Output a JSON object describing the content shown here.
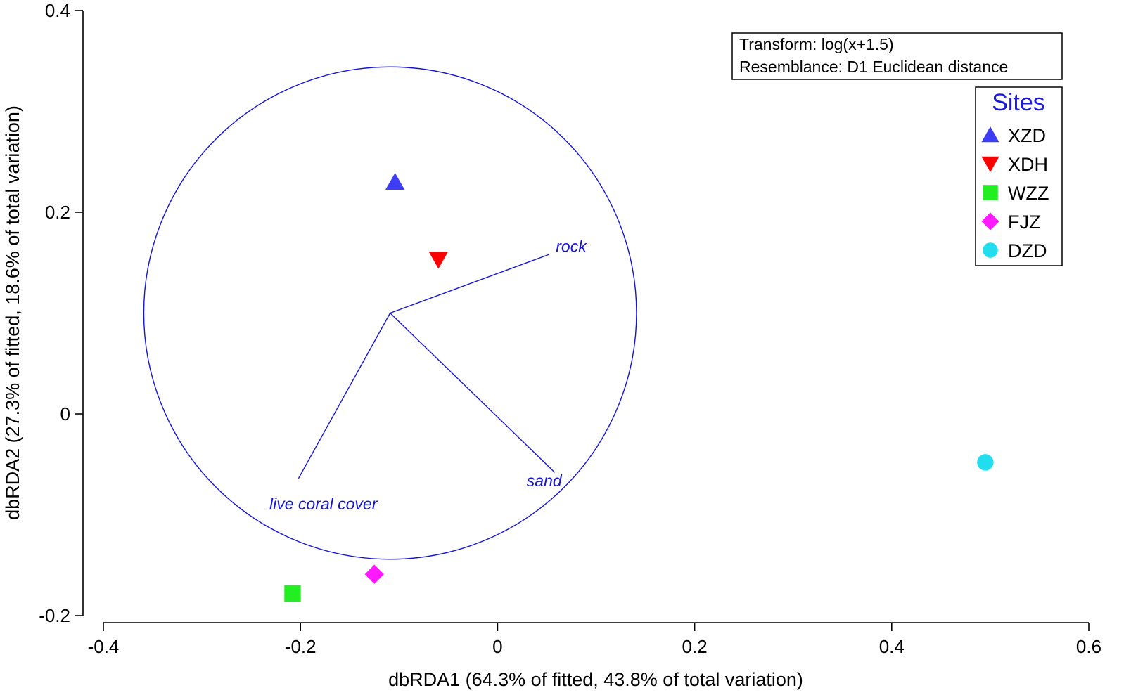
{
  "chart_data": {
    "type": "scatter",
    "title": "",
    "xlabel": "dbRDA1 (64.3% of fitted, 43.8% of total variation)",
    "ylabel": "dbRDA2 (27.3% of fitted, 18.6% of total variation)",
    "xlim": [
      -0.4,
      0.6
    ],
    "ylim": [
      -0.2,
      0.4
    ],
    "x_ticks": [
      -0.4,
      -0.2,
      0,
      0.2,
      0.4,
      0.6
    ],
    "x_tick_labels": [
      "-0.4",
      "-0.2",
      "0",
      "0.2",
      "0.4",
      "0.6"
    ],
    "y_ticks": [
      -0.2,
      0,
      0.2,
      0.4
    ],
    "y_tick_labels": [
      "-0.2",
      "0",
      "0.2",
      "0.4"
    ],
    "grid": false,
    "legend_position": "right",
    "legend_title": "Sites",
    "series": [
      {
        "name": "XZD",
        "marker": "triangle-up",
        "color": "#3d3df5",
        "points": [
          {
            "x": -0.104,
            "y": 0.23
          }
        ]
      },
      {
        "name": "XDH",
        "marker": "triangle-down",
        "color": "#ff0000",
        "points": [
          {
            "x": -0.06,
            "y": 0.153
          }
        ]
      },
      {
        "name": "WZZ",
        "marker": "square",
        "color": "#22ee22",
        "points": [
          {
            "x": -0.208,
            "y": -0.178
          }
        ]
      },
      {
        "name": "FJZ",
        "marker": "diamond",
        "color": "#ff1aff",
        "points": [
          {
            "x": -0.125,
            "y": -0.159
          }
        ]
      },
      {
        "name": "DZD",
        "marker": "circle",
        "color": "#22ddee",
        "points": [
          {
            "x": 0.495,
            "y": -0.048
          }
        ]
      }
    ],
    "vector_overlay": {
      "color": "#1515d6",
      "circle": {
        "center": [
          -0.109,
          0.1
        ],
        "radius": 0.25
      },
      "vectors": [
        {
          "label": "rock",
          "end": [
            0.052,
            0.158
          ]
        },
        {
          "label": "sand",
          "end": [
            0.058,
            -0.058
          ]
        },
        {
          "label": "live coral cover",
          "end": [
            -0.202,
            -0.064
          ]
        }
      ]
    },
    "info_box": {
      "lines": [
        "Transform: log(x+1.5)",
        "Resemblance: D1 Euclidean distance"
      ]
    }
  }
}
